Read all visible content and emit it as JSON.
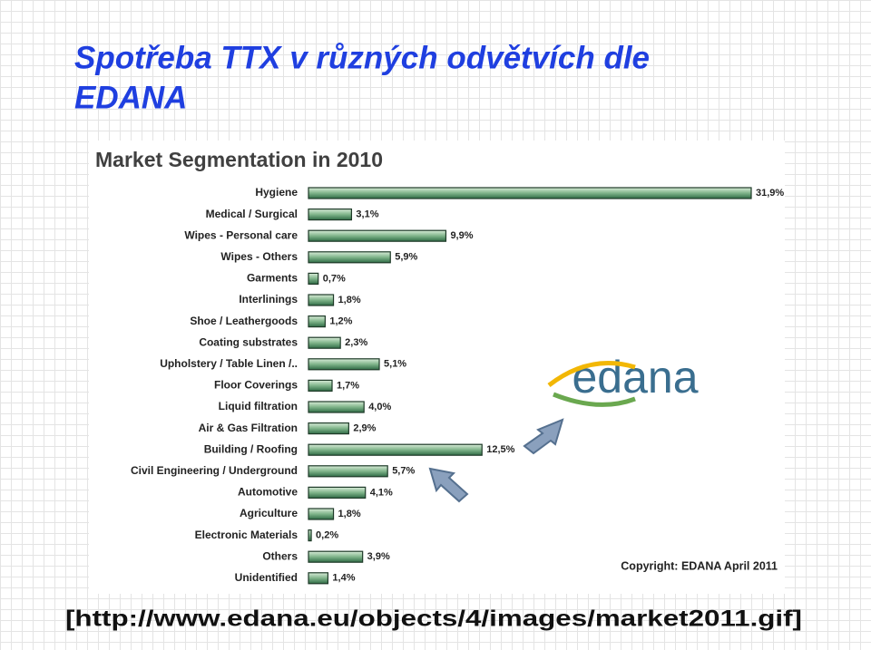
{
  "slide_title": [
    "Spotřeba TTX v různých odvětvích dle",
    "EDANA"
  ],
  "source": "[http://www.edana.eu/objects/4/images/market2011.gif]",
  "chart_data": {
    "type": "bar",
    "orientation": "horizontal",
    "title": "Market Segmentation in 2010",
    "categories": [
      "Hygiene",
      "Medical / Surgical",
      "Wipes - Personal care",
      "Wipes - Others",
      "Garments",
      "Interlinings",
      "Shoe / Leathergoods",
      "Coating substrates",
      "Upholstery / Table Linen /..",
      "Floor Coverings",
      "Liquid filtration",
      "Air & Gas Filtration",
      "Building / Roofing",
      "Civil Engineering / Underground",
      "Automotive",
      "Agriculture",
      "Electronic Materials",
      "Others",
      "Unidentified"
    ],
    "values": [
      31.9,
      3.1,
      9.9,
      5.9,
      0.7,
      1.8,
      1.2,
      2.3,
      5.1,
      1.7,
      4.0,
      2.9,
      12.5,
      5.7,
      4.1,
      1.8,
      0.2,
      3.9,
      1.4
    ],
    "value_labels": [
      "31,9%",
      "3,1%",
      "9,9%",
      "5,9%",
      "0,7%",
      "1,8%",
      "1,2%",
      "2,3%",
      "5,1%",
      "1,7%",
      "4,0%",
      "2,9%",
      "12,5%",
      "5,7%",
      "4,1%",
      "1,8%",
      "0,2%",
      "3,9%",
      "1,4%"
    ],
    "color": "#5a9a6e",
    "logo": "edana",
    "copyright": "Copyright: EDANA April 2011"
  }
}
